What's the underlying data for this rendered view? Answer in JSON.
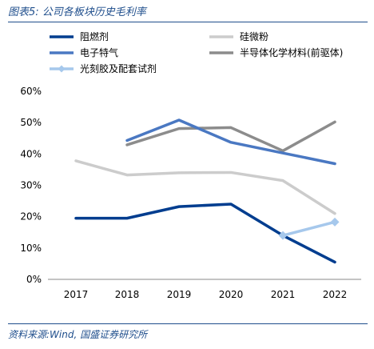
{
  "header": {
    "title": "图表5:  公司各板块历史毛利率"
  },
  "footer": {
    "source": "资料来源:Wind, 国盛证券研究所"
  },
  "chart_data": {
    "type": "line",
    "x": [
      "2017",
      "2018",
      "2019",
      "2020",
      "2021",
      "2022"
    ],
    "ylim": [
      0,
      60
    ],
    "yticks": [
      "0%",
      "10%",
      "20%",
      "30%",
      "40%",
      "50%",
      "60%"
    ],
    "grid": false,
    "legend_position": "top",
    "series": [
      {
        "name": "阻燃剂",
        "color": "#003d8f",
        "marker": "none",
        "values": [
          19.5,
          19.5,
          23.2,
          24.0,
          14.0,
          5.5
        ]
      },
      {
        "name": "硅微粉",
        "color": "#cccccc",
        "marker": "none",
        "values": [
          37.8,
          33.3,
          34.0,
          34.1,
          31.5,
          21.0
        ]
      },
      {
        "name": "电子特气",
        "color": "#4a78c2",
        "marker": "none",
        "values": [
          null,
          44.3,
          50.8,
          43.7,
          40.3,
          36.9
        ]
      },
      {
        "name": "半导体化学材料(前驱体)",
        "color": "#8c8c8c",
        "marker": "none",
        "values": [
          null,
          42.9,
          48.1,
          48.4,
          41.0,
          50.2
        ]
      },
      {
        "name": "光刻胶及配套试剂",
        "color": "#a6c8ec",
        "marker": "diamond",
        "values": [
          null,
          null,
          null,
          null,
          14.0,
          18.3
        ]
      }
    ]
  }
}
